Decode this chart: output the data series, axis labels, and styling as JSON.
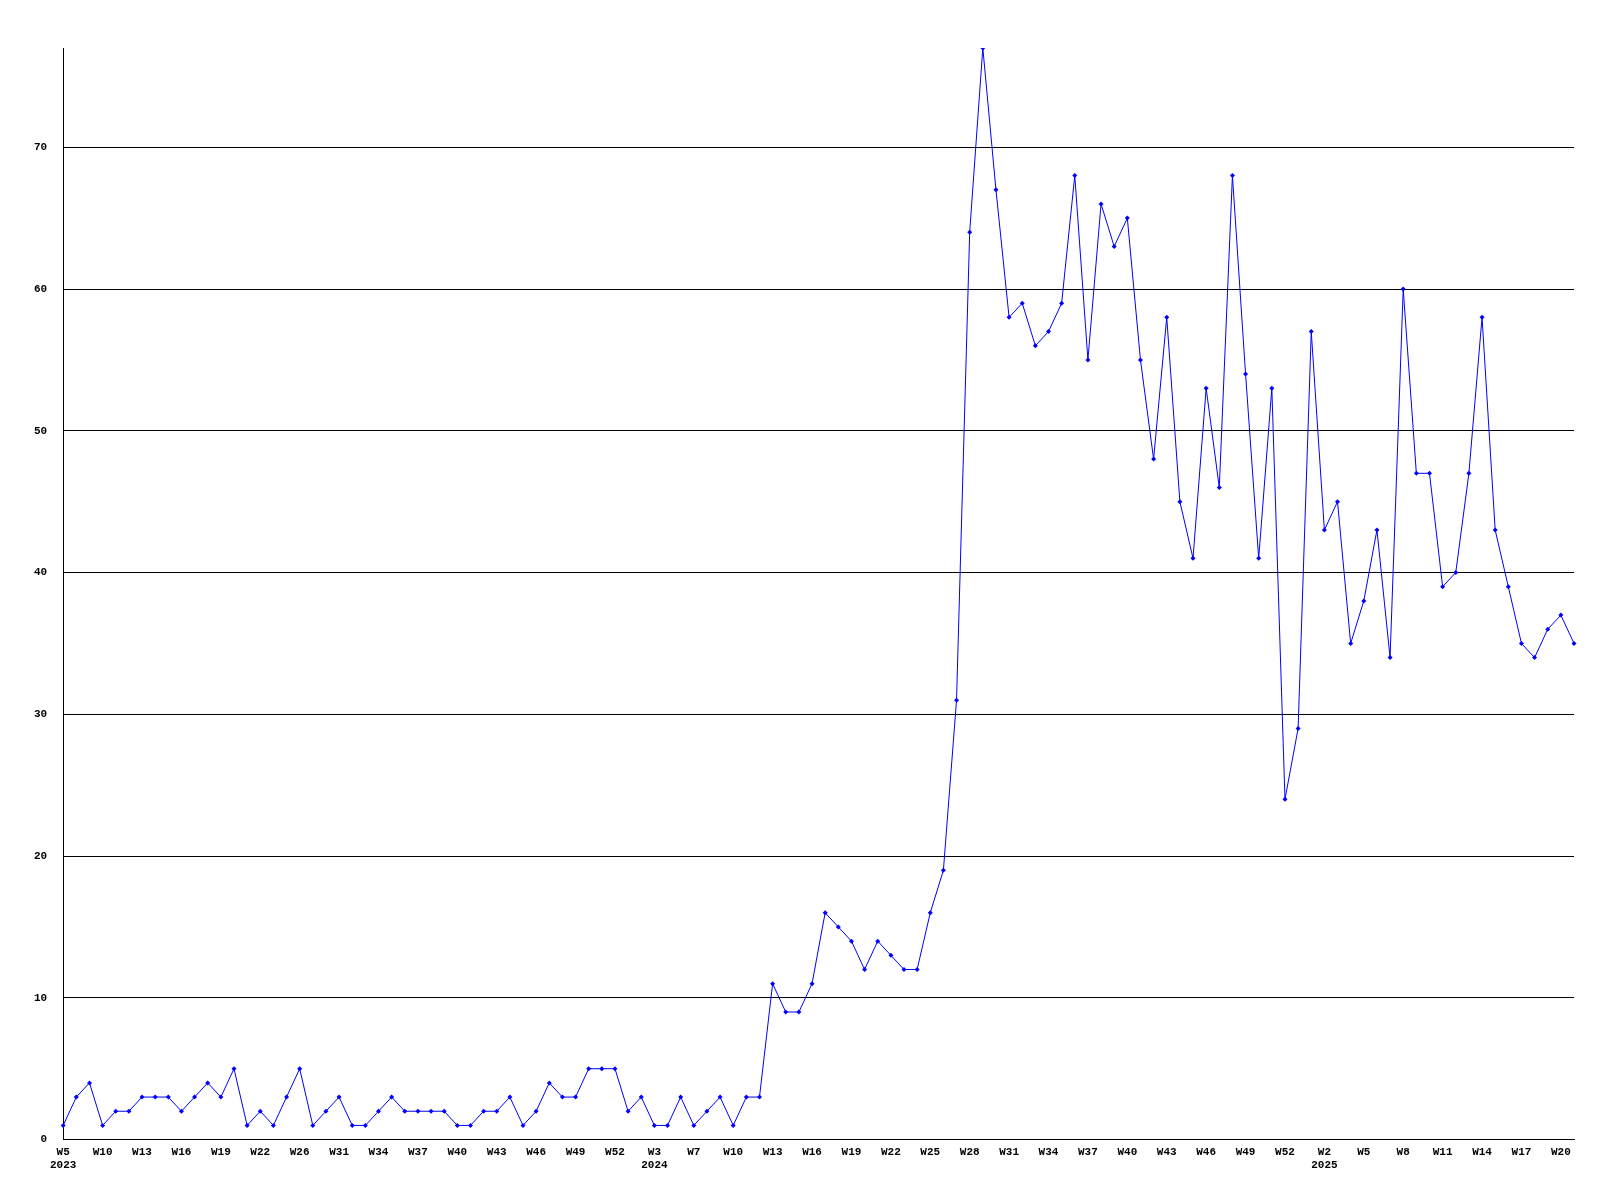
{
  "chart_data": {
    "type": "line",
    "categories": [
      "W5\n2023",
      null,
      null,
      "W10",
      null,
      null,
      "W13",
      null,
      null,
      "W16",
      null,
      null,
      "W19",
      null,
      null,
      "W22",
      null,
      null,
      "W26",
      null,
      null,
      "W31",
      null,
      null,
      "W34",
      null,
      null,
      "W37",
      null,
      null,
      "W40",
      null,
      null,
      "W43",
      null,
      null,
      "W46",
      null,
      null,
      "W49",
      null,
      null,
      "W52",
      null,
      null,
      "W3\n2024",
      null,
      null,
      "W7",
      null,
      null,
      "W10",
      null,
      null,
      "W13",
      null,
      null,
      "W16",
      null,
      null,
      "W19",
      null,
      null,
      "W22",
      null,
      null,
      "W25",
      null,
      null,
      "W28",
      null,
      null,
      "W31",
      null,
      null,
      "W34",
      null,
      null,
      "W37",
      null,
      null,
      "W40",
      null,
      null,
      "W43",
      null,
      null,
      "W46",
      null,
      null,
      "W49",
      null,
      null,
      "W52",
      null,
      null,
      "W2\n2025",
      null,
      null,
      "W5",
      null,
      null,
      "W8",
      null,
      null,
      "W11",
      null,
      null,
      "W14",
      null,
      null,
      "W17",
      null,
      null,
      "W20",
      null
    ],
    "series": [
      {
        "color": "#0000ff",
        "values": [
          1,
          3,
          4,
          1,
          2,
          2,
          3,
          3,
          3,
          2,
          3,
          4,
          3,
          5,
          1,
          2,
          1,
          3,
          5,
          1,
          2,
          3,
          1,
          1,
          2,
          3,
          2,
          2,
          2,
          2,
          1,
          1,
          2,
          2,
          3,
          1,
          2,
          4,
          3,
          3,
          5,
          5,
          5,
          2,
          3,
          1,
          1,
          3,
          1,
          2,
          3,
          1,
          3,
          3,
          11,
          9,
          9,
          11,
          16,
          15,
          14,
          12,
          14,
          13,
          12,
          12,
          16,
          19,
          31,
          64,
          77,
          67,
          58,
          59,
          56,
          57,
          59,
          68,
          55,
          66,
          63,
          65,
          55,
          48,
          58,
          45,
          41,
          53,
          46,
          68,
          54,
          41,
          53,
          24,
          29,
          57,
          43,
          45,
          35,
          38,
          43,
          34,
          60,
          47,
          47,
          39,
          40,
          47,
          58,
          43,
          39,
          35,
          34,
          36,
          37,
          35
        ]
      }
    ],
    "ylim": [
      0,
      77
    ],
    "yticks": [
      0,
      10,
      20,
      30,
      40,
      50,
      60,
      70
    ],
    "grid": "y",
    "legend": false,
    "marker": "diamond",
    "line_style": "solid"
  }
}
